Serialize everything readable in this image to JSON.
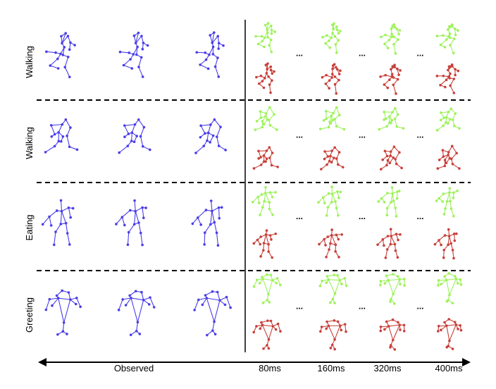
{
  "rows": [
    {
      "action": "Walking"
    },
    {
      "action": "Walking"
    },
    {
      "action": "Eating"
    },
    {
      "action": "Greeting"
    }
  ],
  "axis": {
    "observed_label": "Observed",
    "times": [
      "80ms",
      "160ms",
      "320ms",
      "400ms"
    ]
  },
  "ellipsis": "...",
  "colors": {
    "observed": "#4a3ee8",
    "ground_truth": "#9df25a",
    "prediction": "#c8403a",
    "line": "#000000"
  }
}
